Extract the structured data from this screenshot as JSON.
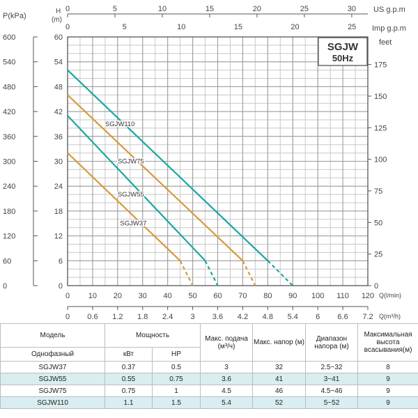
{
  "chart_data": {
    "type": "line",
    "legend_box": {
      "line1": "SGJW",
      "line2": "50Hz"
    },
    "left_axes": {
      "pressure": {
        "label": "P(kPa)",
        "ticks": [
          0,
          60,
          120,
          180,
          240,
          300,
          360,
          420,
          480,
          540,
          600
        ]
      },
      "head_m": {
        "label_top": "H",
        "label_bottom": "(m)",
        "ticks": [
          0,
          6,
          12,
          18,
          24,
          30,
          36,
          42,
          48,
          54,
          60
        ]
      }
    },
    "right_axis": {
      "label": "feet",
      "ticks": [
        0,
        25,
        50,
        75,
        100,
        125,
        150,
        175
      ]
    },
    "top_axes": {
      "us_gpm": {
        "label": "US g.p.m",
        "ticks": [
          0,
          5,
          10,
          15,
          20,
          25,
          30
        ]
      },
      "imp_gpm": {
        "label": "Imp g.p.m",
        "ticks": [
          0,
          5,
          10,
          15,
          20,
          25
        ]
      }
    },
    "bottom_axes": {
      "l_min": {
        "label": "Q(l/min)",
        "ticks": [
          0,
          10,
          20,
          30,
          40,
          50,
          60,
          70,
          80,
          90,
          100,
          110,
          120
        ]
      },
      "m3_h": {
        "label": "Q(m³/h)",
        "ticks": [
          "0",
          "0.6",
          "1.2",
          "1.8",
          "2.4",
          "3",
          "3.6",
          "4.2",
          "4.8",
          "5.4",
          "6",
          "6.6",
          "7.2"
        ]
      }
    },
    "xlim": [
      0,
      120
    ],
    "ylim": [
      0,
      60
    ],
    "grid": true,
    "series": [
      {
        "name": "SGJW110",
        "color": "#1aa7a1",
        "x": [
          0,
          80,
          90
        ],
        "y": [
          52,
          6,
          0
        ],
        "dashed_from_x": 80,
        "label_pos": [
          15,
          38.5
        ]
      },
      {
        "name": "SGJW75",
        "color": "#d79a3c",
        "x": [
          0,
          70,
          75
        ],
        "y": [
          46,
          6,
          0
        ],
        "dashed_from_x": 70,
        "label_pos": [
          20,
          29.5
        ]
      },
      {
        "name": "SGJW55",
        "color": "#1aa7a1",
        "x": [
          0,
          55,
          60
        ],
        "y": [
          41,
          6,
          0
        ],
        "dashed_from_x": 55,
        "label_pos": [
          20,
          21.5
        ]
      },
      {
        "name": "SGJW37",
        "color": "#d79a3c",
        "x": [
          0,
          45,
          50
        ],
        "y": [
          32,
          6,
          0
        ],
        "dashed_from_x": 45,
        "label_pos": [
          21,
          14.5
        ]
      }
    ]
  },
  "table": {
    "headers": {
      "model": "Модель",
      "power": "Мощность",
      "max_flow": "Макс. подача (м³/ч)",
      "max_head": "Макс. напор (м)",
      "head_range": "Диапазон напора (м)",
      "suction": "Максимальная высота всасывания(м)"
    },
    "subheaders": {
      "type": "Однофазный",
      "kw": "кВт",
      "hp": "HP"
    },
    "rows": [
      {
        "model": "SGJW37",
        "kw": "0.37",
        "hp": "0.5",
        "flow": "3",
        "head": "32",
        "range": "2.5~32",
        "suction": "8"
      },
      {
        "model": "SGJW55",
        "kw": "0.55",
        "hp": "0.75",
        "flow": "3.6",
        "head": "41",
        "range": "3~41",
        "suction": "9"
      },
      {
        "model": "SGJW75",
        "kw": "0.75",
        "hp": "1",
        "flow": "4.5",
        "head": "46",
        "range": "4.5~46",
        "suction": "9"
      },
      {
        "model": "SGJW110",
        "kw": "1.1",
        "hp": "1.5",
        "flow": "5.4",
        "head": "52",
        "range": "5~52",
        "suction": "9"
      }
    ]
  }
}
